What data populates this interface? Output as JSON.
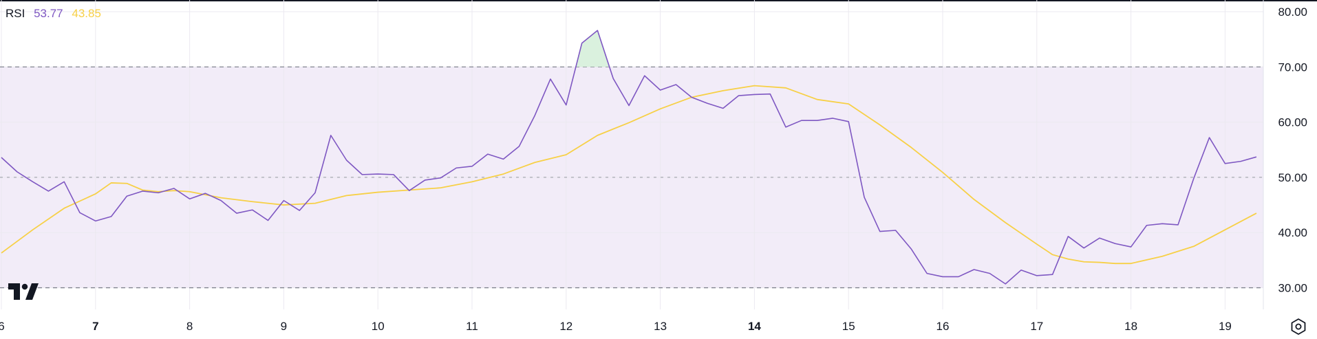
{
  "chart_data": {
    "type": "line",
    "title": "RSI",
    "legend": [
      {
        "label": "RSI",
        "color": "#131722"
      },
      {
        "label": "53.77",
        "color": "#7e57c2"
      },
      {
        "label": "43.85",
        "color": "#f7d046"
      }
    ],
    "ylim": [
      30,
      80
    ],
    "xlim": [
      6.0,
      19.45
    ],
    "y_ticks": [
      "80.00",
      "70.00",
      "60.00",
      "50.00",
      "40.00",
      "30.00"
    ],
    "x_ticks": [
      "6",
      "7",
      "8",
      "9",
      "10",
      "11",
      "12",
      "13",
      "14",
      "15",
      "16",
      "17",
      "18",
      "19"
    ],
    "bold_x_ticks": [
      "7",
      "14"
    ],
    "band": {
      "lower": 30,
      "upper": 70,
      "middle": 50
    },
    "grid": true,
    "legend_position": "top-left",
    "colors": {
      "rsi": "#7e57c2",
      "ma": "#f7d046",
      "band": "#f2ecf8",
      "overbought_fill": "#d6f0da"
    },
    "series": [
      {
        "key": "rsi",
        "x": [
          6.0,
          6.167,
          6.333,
          6.5,
          6.667,
          6.833,
          7.0,
          7.167,
          7.333,
          7.5,
          7.667,
          7.833,
          8.0,
          8.167,
          8.333,
          8.5,
          8.667,
          8.833,
          9.0,
          9.167,
          9.333,
          9.5,
          9.667,
          9.833,
          10.0,
          10.167,
          10.333,
          10.5,
          10.667,
          10.833,
          11.0,
          11.167,
          11.333,
          11.5,
          11.667,
          11.833,
          12.0,
          12.167,
          12.333,
          12.5,
          12.667,
          12.833,
          13.0,
          13.167,
          13.333,
          13.5,
          13.667,
          13.833,
          14.0,
          14.167,
          14.333,
          14.5,
          14.667,
          14.833,
          15.0,
          15.167,
          15.333,
          15.5,
          15.667,
          15.833,
          16.0,
          16.167,
          16.333,
          16.5,
          16.667,
          16.833,
          17.0,
          17.167,
          17.333,
          17.5,
          17.667,
          17.833,
          18.0,
          18.167,
          18.333,
          18.5,
          18.667,
          18.833,
          19.0,
          19.167,
          19.333
        ],
        "values": [
          53.6,
          51.0,
          49.2,
          47.5,
          49.2,
          43.6,
          42.1,
          42.9,
          46.6,
          47.5,
          47.2,
          48.0,
          46.1,
          47.1,
          45.8,
          43.5,
          44.1,
          42.2,
          45.8,
          44.0,
          47.2,
          57.6,
          53.1,
          50.5,
          50.6,
          50.5,
          47.6,
          49.5,
          49.9,
          51.7,
          52.0,
          54.2,
          53.3,
          55.6,
          61.2,
          67.8,
          63.1,
          74.3,
          76.6,
          67.9,
          63.0,
          68.4,
          65.8,
          66.8,
          64.5,
          63.4,
          62.5,
          64.8,
          65.0,
          65.1,
          59.1,
          60.3,
          60.3,
          60.7,
          60.1,
          46.4,
          40.2,
          40.4,
          37.0,
          32.6,
          32.0,
          32.0,
          33.3,
          32.6,
          30.7,
          33.2,
          32.2,
          32.4,
          39.3,
          37.2,
          39.0,
          38.0,
          37.4,
          41.3,
          41.6,
          41.4,
          49.8,
          57.2,
          52.5,
          52.9,
          53.7
        ]
      },
      {
        "key": "ma",
        "x": [
          6.0,
          6.333,
          6.667,
          7.0,
          7.167,
          7.333,
          7.5,
          7.667,
          7.833,
          8.0,
          8.333,
          8.667,
          9.0,
          9.333,
          9.667,
          10.0,
          10.333,
          10.667,
          11.0,
          11.333,
          11.667,
          12.0,
          12.333,
          12.667,
          13.0,
          13.333,
          13.667,
          14.0,
          14.333,
          14.667,
          15.0,
          15.333,
          15.667,
          16.0,
          16.333,
          16.667,
          17.0,
          17.167,
          17.333,
          17.5,
          17.667,
          17.833,
          18.0,
          18.333,
          18.667,
          19.0,
          19.333
        ],
        "values": [
          36.3,
          40.5,
          44.4,
          47.0,
          49.0,
          48.9,
          47.7,
          47.4,
          47.6,
          47.4,
          46.3,
          45.6,
          45.0,
          45.3,
          46.7,
          47.3,
          47.7,
          48.1,
          49.2,
          50.6,
          52.7,
          54.1,
          57.6,
          59.9,
          62.4,
          64.5,
          65.7,
          66.6,
          66.2,
          64.1,
          63.3,
          59.5,
          55.4,
          50.9,
          46.0,
          41.8,
          37.9,
          36.0,
          35.2,
          34.7,
          34.6,
          34.4,
          34.4,
          35.7,
          37.5,
          40.5,
          43.5
        ]
      }
    ]
  },
  "icons": {
    "logo": "tradingview-logo-icon",
    "settings": "settings-gear-icon"
  }
}
